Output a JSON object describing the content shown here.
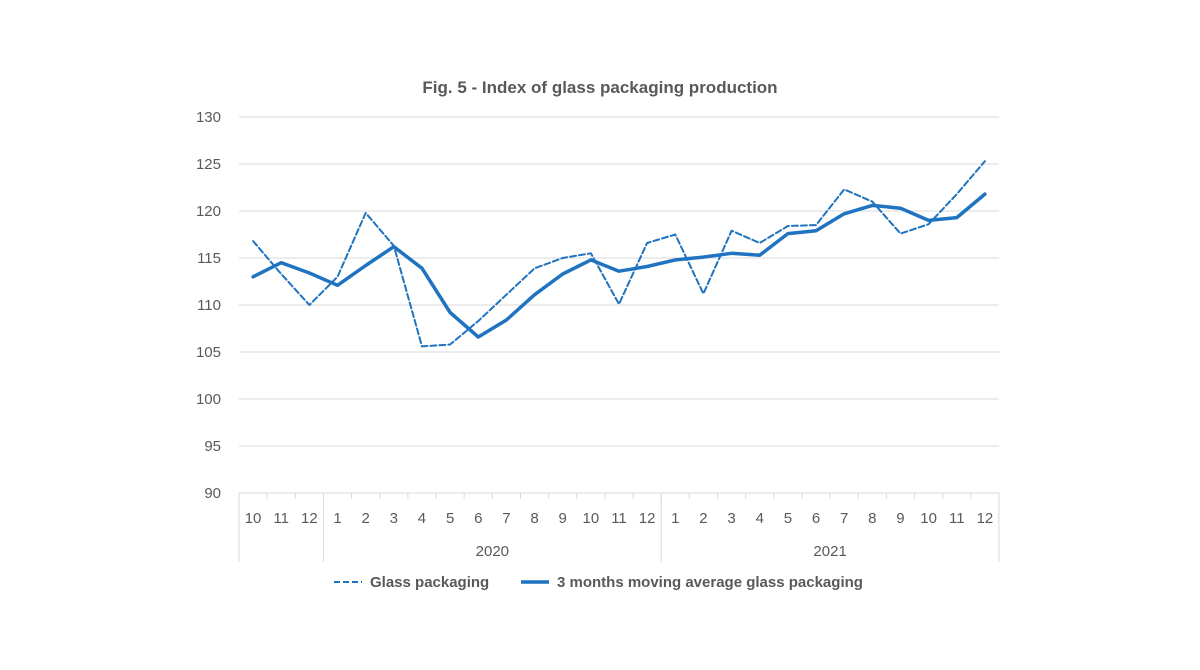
{
  "chart_data": {
    "type": "line",
    "title": "Fig. 5 - Index of glass packaging production",
    "ylim": [
      90,
      130
    ],
    "y_ticks": [
      "90",
      "95",
      "100",
      "105",
      "110",
      "115",
      "120",
      "125",
      "130"
    ],
    "categories": [
      "10",
      "11",
      "12",
      "1",
      "2",
      "3",
      "4",
      "5",
      "6",
      "7",
      "8",
      "9",
      "10",
      "11",
      "12",
      "1",
      "2",
      "3",
      "4",
      "5",
      "6",
      "7",
      "8",
      "9",
      "10",
      "11",
      "12"
    ],
    "year_groups": [
      {
        "label": "",
        "start": 0,
        "end": 2
      },
      {
        "label": "2020",
        "start": 3,
        "end": 14
      },
      {
        "label": "2021",
        "start": 15,
        "end": 26
      }
    ],
    "series": [
      {
        "name": "Glass packaging",
        "style": "dashed",
        "color": "#1f73c0",
        "values": [
          116.8,
          113.3,
          110.0,
          113.0,
          119.8,
          116.3,
          105.6,
          105.8,
          108.3,
          111.1,
          113.9,
          115.0,
          115.5,
          110.1,
          116.6,
          117.5,
          111.2,
          117.9,
          116.6,
          118.4,
          118.5,
          122.3,
          121.0,
          117.6,
          118.6,
          121.8,
          125.3
        ]
      },
      {
        "name": "3 months moving average glass packaging",
        "style": "solid",
        "color": "#1f73c0",
        "values": [
          113.0,
          114.5,
          113.4,
          112.1,
          114.2,
          116.2,
          113.9,
          109.2,
          106.6,
          108.4,
          111.1,
          113.3,
          114.8,
          113.6,
          114.1,
          114.8,
          115.1,
          115.5,
          115.3,
          117.6,
          117.9,
          119.7,
          120.6,
          120.3,
          119.0,
          119.3,
          121.8
        ]
      }
    ],
    "grid": true,
    "legend": "bottom"
  }
}
